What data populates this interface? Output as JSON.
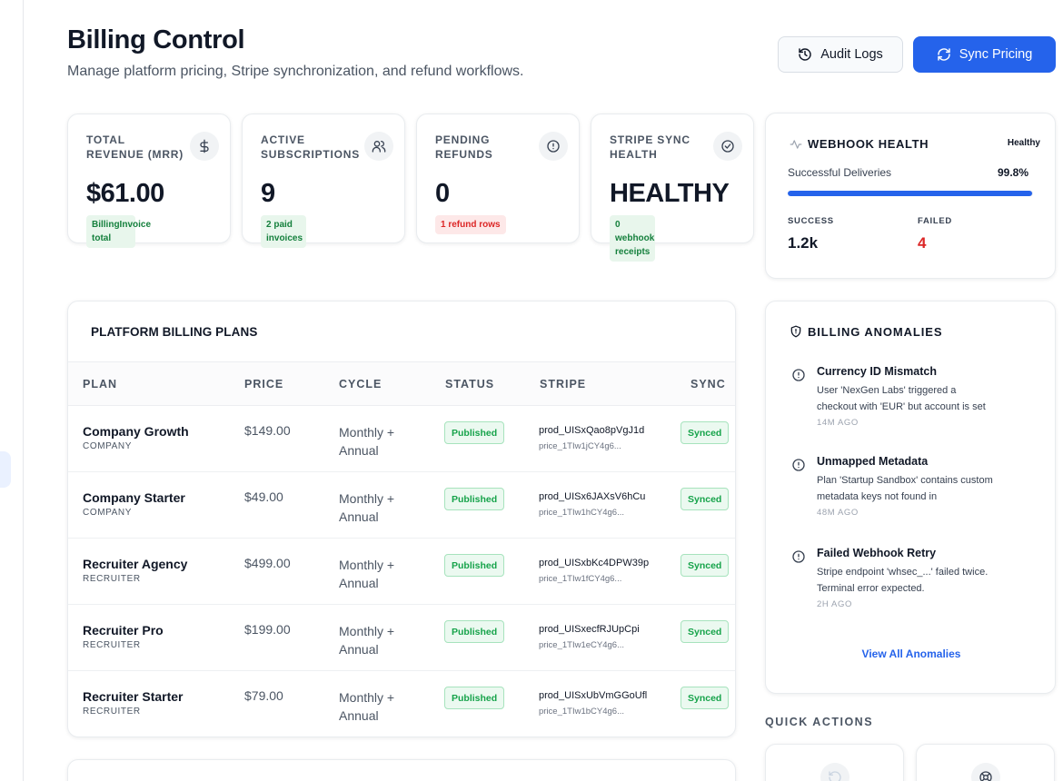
{
  "header": {
    "title": "Billing Control",
    "subtitle": "Manage platform pricing, Stripe synchronization, and refund workflows.",
    "audit_logs_label": "Audit Logs",
    "sync_pricing_label": "Sync Pricing"
  },
  "stats": [
    {
      "label": "TOTAL REVENUE (MRR)",
      "value": "$61.00",
      "badge": "BillingInvoice total",
      "icon": "dollar-icon"
    },
    {
      "label": "ACTIVE SUBSCRIPTIONS",
      "value": "9",
      "badge": "2 paid invoices",
      "icon": "users-icon"
    },
    {
      "label": "PENDING REFUNDS",
      "value": "0",
      "badge": "1 refund rows",
      "icon": "alert-circle-icon"
    },
    {
      "label": "STRIPE SYNC HEALTH",
      "value": "HEALTHY",
      "badge": "0 webhook receipts",
      "icon": "check-circle-icon"
    }
  ],
  "webhook": {
    "title": "WEBHOOK HEALTH",
    "status": "Healthy",
    "deliveries_label": "Successful Deliveries",
    "deliveries_value": "99.8%",
    "deliveries_fraction": 0.998,
    "success_label": "SUCCESS",
    "success_value": "1.2k",
    "failed_label": "FAILED",
    "failed_value": "4"
  },
  "plans": {
    "title": "PLATFORM BILLING PLANS",
    "columns": [
      "PLAN",
      "PRICE",
      "CYCLE",
      "STATUS",
      "STRIPE",
      "SYNC"
    ],
    "rows": [
      {
        "name": "Company Growth",
        "category": "COMPANY",
        "price": "$149.00",
        "cycle": "Monthly + Annual",
        "status": "Published",
        "stripe_product": "prod_UISxQao8pVgJ1d",
        "stripe_price": "price_1TIw1jCY4g6...",
        "sync": "Synced"
      },
      {
        "name": "Company Starter",
        "category": "COMPANY",
        "price": "$49.00",
        "cycle": "Monthly + Annual",
        "status": "Published",
        "stripe_product": "prod_UISx6JAXsV6hCu",
        "stripe_price": "price_1TIw1hCY4g6...",
        "sync": "Synced"
      },
      {
        "name": "Recruiter Agency",
        "category": "RECRUITER",
        "price": "$499.00",
        "cycle": "Monthly + Annual",
        "status": "Published",
        "stripe_product": "prod_UISxbKc4DPW39p",
        "stripe_price": "price_1TIw1fCY4g6...",
        "sync": "Synced"
      },
      {
        "name": "Recruiter Pro",
        "category": "RECRUITER",
        "price": "$199.00",
        "cycle": "Monthly + Annual",
        "status": "Published",
        "stripe_product": "prod_UISxecfRJUpCpi",
        "stripe_price": "price_1TIw1eCY4g6...",
        "sync": "Synced"
      },
      {
        "name": "Recruiter Starter",
        "category": "RECRUITER",
        "price": "$79.00",
        "cycle": "Monthly + Annual",
        "status": "Published",
        "stripe_product": "prod_UISxUbVmGGoUfl",
        "stripe_price": "price_1TIw1bCY4g6...",
        "sync": "Synced"
      }
    ]
  },
  "anomalies": {
    "title": "BILLING ANOMALIES",
    "items": [
      {
        "title": "Currency ID Mismatch",
        "description": "User 'NexGen Labs' triggered a checkout with 'EUR' but account is set",
        "time": "14M AGO"
      },
      {
        "title": "Unmapped Metadata",
        "description": "Plan 'Startup Sandbox' contains custom metadata keys not found in",
        "time": "48M AGO"
      },
      {
        "title": "Failed Webhook Retry",
        "description": "Stripe endpoint 'whsec_...' failed twice. Terminal error expected.",
        "time": "2H AGO"
      }
    ],
    "view_all_label": "View All Anomalies"
  },
  "quick_actions": {
    "title": "QUICK ACTIONS"
  },
  "colors": {
    "accent": "#2563eb",
    "success": "#16a34a",
    "danger": "#dc2626"
  }
}
